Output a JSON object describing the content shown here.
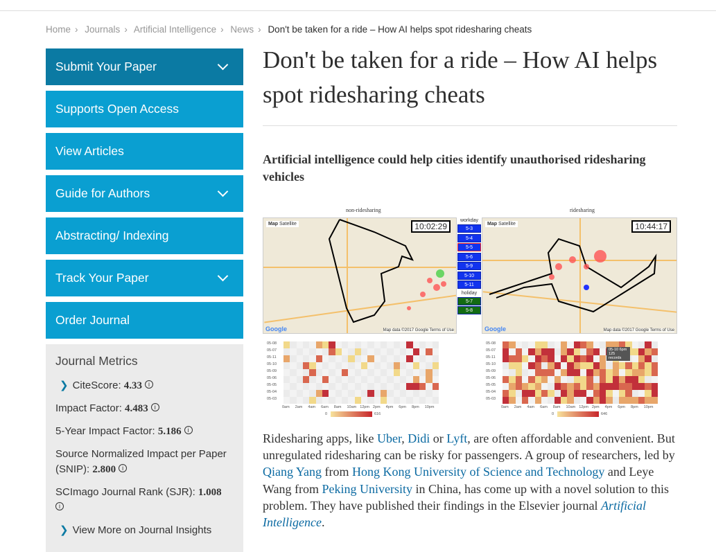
{
  "breadcrumb": [
    "Home",
    "Journals",
    "Artificial Intelligence",
    "News",
    "Don't be taken for a ride – How AI helps spot ridesharing cheats"
  ],
  "sidebar": {
    "items": [
      {
        "label": "Submit Your Paper",
        "expandable": true
      },
      {
        "label": "Supports Open Access",
        "expandable": false
      },
      {
        "label": "View Articles",
        "expandable": false
      },
      {
        "label": "Guide for Authors",
        "expandable": true
      },
      {
        "label": "Abstracting/ Indexing",
        "expandable": false
      },
      {
        "label": "Track Your Paper",
        "expandable": true
      },
      {
        "label": "Order Journal",
        "expandable": false
      }
    ],
    "metrics": {
      "title": "Journal Metrics",
      "citescore_label": "CiteScore:",
      "citescore": "4.33",
      "if_label": "Impact Factor:",
      "if": "4.483",
      "if5_label": "5-Year Impact Factor:",
      "if5": "5.186",
      "snip_label": "Source Normalized Impact per Paper (SNIP):",
      "snip": "2.800",
      "sjr_label": "SCImago Journal Rank (SJR):",
      "sjr": "1.008",
      "more": "View More on Journal Insights"
    }
  },
  "article": {
    "title": "Don't be taken for a ride – How AI helps spot ridesharing cheats",
    "lead": "Artificial intelligence could help cities identify unauthorised ridesharing vehicles",
    "figure": {
      "left_title": "non-ridesharing",
      "right_title": "ridesharing",
      "left_time": "10:02:29",
      "right_time": "10:44:17",
      "map_btn": "Map",
      "sat_btn": "Satellite",
      "map_credit": "Map data ©2017 Google  Terms of Use",
      "google": "Google",
      "workday_label": "workday",
      "workdays": [
        "5-3",
        "5-4",
        "5-5",
        "5-6",
        "5-9",
        "5-10",
        "5-11"
      ],
      "holiday_label": "holiday",
      "holidays": [
        "5-7",
        "5-8"
      ],
      "rows": [
        "05-08",
        "05-07",
        "05-11",
        "05-10",
        "05-09",
        "05-06",
        "05-05",
        "05-04",
        "05-03"
      ],
      "cols": [
        "0am",
        "2am",
        "4am",
        "6am",
        "8am",
        "10am",
        "12pm",
        "2pm",
        "4pm",
        "6pm",
        "8pm",
        "10pm"
      ],
      "left_scale": [
        "0",
        "616"
      ],
      "right_scale": [
        "0",
        "646"
      ],
      "tooltip": "05-10 6pm 125 records"
    },
    "body": {
      "p1": "Ridesharing apps, like ",
      "uber": "Uber",
      ",1": ", ",
      "didi": "Didi",
      "or": " or ",
      "lyft": "Lyft",
      "p2": ", are often affordable and convenient. But unregulated ridesharing can be risky for passengers. A group of researchers, led by ",
      "qiang": "Qiang Yang",
      "from": " from ",
      "hkust": "Hong Kong University of Science and Technology",
      "p3": " and Leye Wang from ",
      "pku": "Peking University",
      "p4": " in China, has come up with a novel solution to this problem. They have published their findings in the Elsevier journal ",
      "journal": "Artificial Intelligence",
      "end": "."
    }
  },
  "colors": {
    "nav": "#0a9fd1",
    "nav_dark": "#0b7aa3",
    "link": "#0b6aa2"
  }
}
